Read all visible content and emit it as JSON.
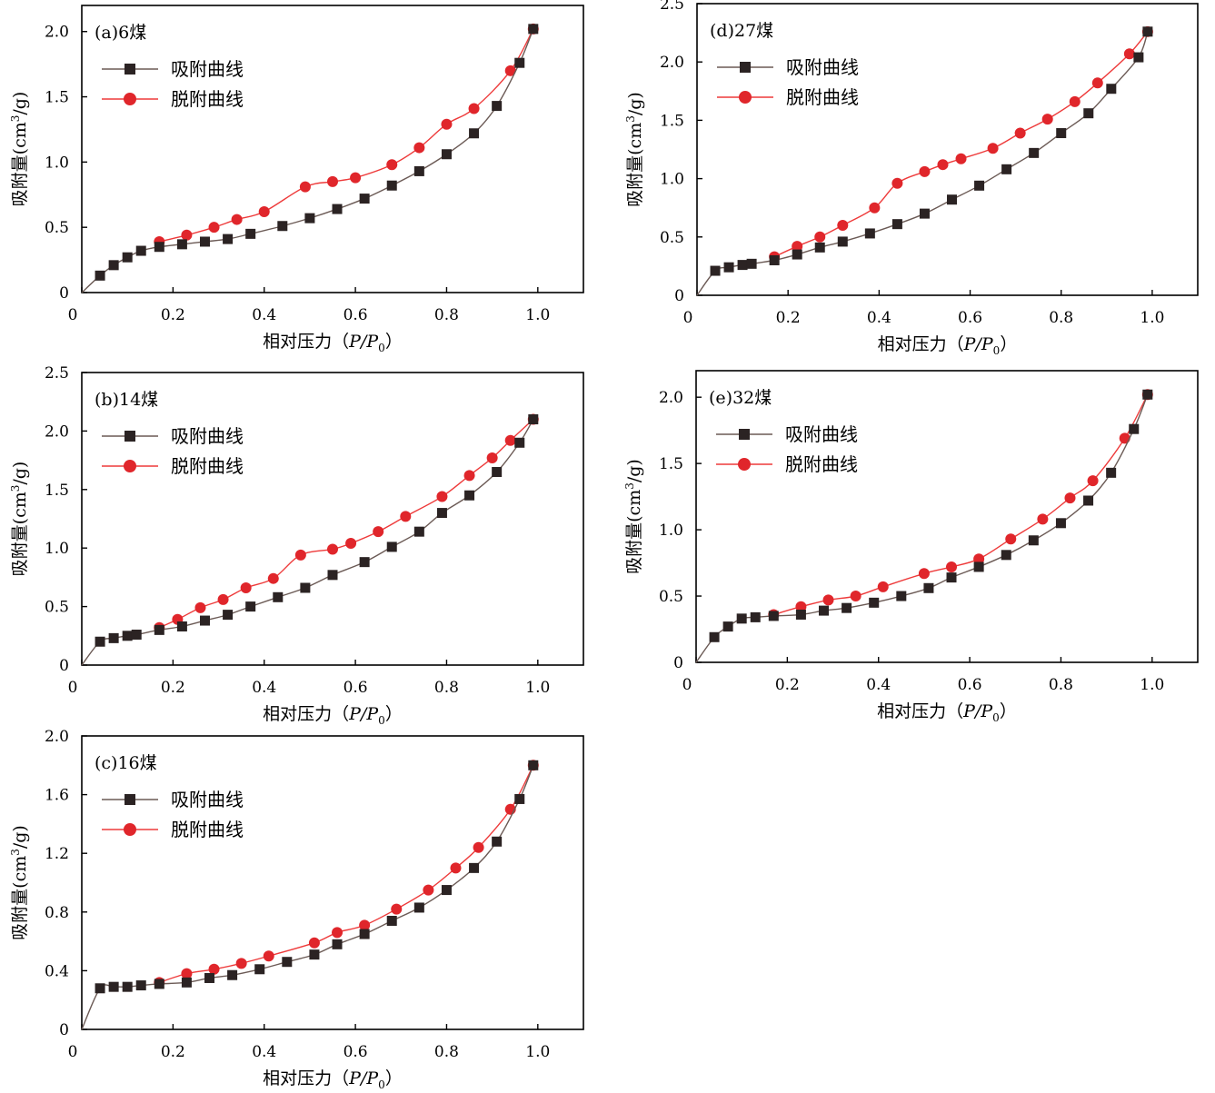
{
  "colors": {
    "adsorption": "#2b2323",
    "desorption": "#e0262b",
    "adsorption_line": "#6b5a55",
    "desorption_line": "#ee3a3a"
  },
  "chart_data": [
    {
      "id": "a",
      "type": "line",
      "panel_label": "(a)6煤",
      "xlabel_main": "相对压力（",
      "xlabel_p": "P",
      "xlabel_slash": "/",
      "xlabel_p0": "P",
      "xlabel_sub": "0",
      "xlabel_close": "）",
      "ylabel_main": "吸附量(cm",
      "ylabel_sup": "3",
      "ylabel_tail": "/g)",
      "xlim": [
        0,
        1.1
      ],
      "ylim": [
        0,
        2.2
      ],
      "xticks": [
        0,
        0.2,
        0.4,
        0.6,
        0.8,
        1.0
      ],
      "xtick_labels": [
        "0",
        "0.2",
        "0.4",
        "0.6",
        "0.8",
        "1.0"
      ],
      "yticks": [
        0,
        0.5,
        1.0,
        1.5,
        2.0
      ],
      "ytick_labels": [
        "0",
        "0.5",
        "1.0",
        "1.5",
        "2.0"
      ],
      "legend_position": "top-left",
      "series": [
        {
          "name": "吸附曲线",
          "marker": "square",
          "x": [
            0.0,
            0.04,
            0.07,
            0.1,
            0.13,
            0.17,
            0.22,
            0.27,
            0.32,
            0.37,
            0.44,
            0.5,
            0.56,
            0.62,
            0.68,
            0.74,
            0.8,
            0.86,
            0.91,
            0.96,
            0.99
          ],
          "y": [
            0.0,
            0.13,
            0.21,
            0.27,
            0.32,
            0.35,
            0.37,
            0.39,
            0.41,
            0.45,
            0.51,
            0.57,
            0.64,
            0.72,
            0.82,
            0.93,
            1.06,
            1.22,
            1.43,
            1.76,
            2.02
          ]
        },
        {
          "name": "脱附曲线",
          "marker": "circle",
          "x": [
            0.99,
            0.94,
            0.86,
            0.8,
            0.74,
            0.68,
            0.6,
            0.55,
            0.49,
            0.4,
            0.34,
            0.29,
            0.23,
            0.17
          ],
          "y": [
            2.02,
            1.7,
            1.41,
            1.29,
            1.11,
            0.98,
            0.88,
            0.85,
            0.81,
            0.62,
            0.56,
            0.5,
            0.44,
            0.39
          ]
        }
      ]
    },
    {
      "id": "b",
      "type": "line",
      "panel_label": "(b)14煤",
      "xlabel_main": "相对压力（",
      "xlabel_p": "P",
      "xlabel_slash": "/",
      "xlabel_p0": "P",
      "xlabel_sub": "0",
      "xlabel_close": "）",
      "ylabel_main": "吸附量(cm",
      "ylabel_sup": "3",
      "ylabel_tail": "/g)",
      "xlim": [
        0,
        1.1
      ],
      "ylim": [
        0,
        2.5
      ],
      "xticks": [
        0,
        0.2,
        0.4,
        0.6,
        0.8,
        1.0
      ],
      "xtick_labels": [
        "0",
        "0.2",
        "0.4",
        "0.6",
        "0.8",
        "1.0"
      ],
      "yticks": [
        0,
        0.5,
        1.0,
        1.5,
        2.0,
        2.5
      ],
      "ytick_labels": [
        "0",
        "0.5",
        "1.0",
        "1.5",
        "2.0",
        "2.5"
      ],
      "legend_position": "top-left",
      "series": [
        {
          "name": "吸附曲线",
          "marker": "square",
          "x": [
            0.0,
            0.04,
            0.07,
            0.1,
            0.12,
            0.17,
            0.22,
            0.27,
            0.32,
            0.37,
            0.43,
            0.49,
            0.55,
            0.62,
            0.68,
            0.74,
            0.79,
            0.85,
            0.91,
            0.96,
            0.99
          ],
          "y": [
            0.0,
            0.2,
            0.23,
            0.25,
            0.26,
            0.3,
            0.33,
            0.38,
            0.43,
            0.5,
            0.58,
            0.66,
            0.77,
            0.88,
            1.01,
            1.14,
            1.3,
            1.45,
            1.65,
            1.9,
            2.1
          ]
        },
        {
          "name": "脱附曲线",
          "marker": "circle",
          "x": [
            0.99,
            0.94,
            0.9,
            0.85,
            0.79,
            0.71,
            0.65,
            0.59,
            0.55,
            0.48,
            0.42,
            0.36,
            0.31,
            0.26,
            0.21,
            0.17
          ],
          "y": [
            2.1,
            1.92,
            1.77,
            1.62,
            1.44,
            1.27,
            1.14,
            1.04,
            0.99,
            0.94,
            0.74,
            0.66,
            0.56,
            0.49,
            0.39,
            0.32
          ]
        }
      ]
    },
    {
      "id": "c",
      "type": "line",
      "panel_label": "(c)16煤",
      "xlabel_main": "相对压力（",
      "xlabel_p": "P",
      "xlabel_slash": "/",
      "xlabel_p0": "P",
      "xlabel_sub": "0",
      "xlabel_close": "）",
      "ylabel_main": "吸附量(cm",
      "ylabel_sup": "3",
      "ylabel_tail": "/g)",
      "xlim": [
        0,
        1.1
      ],
      "ylim": [
        0,
        2.0
      ],
      "xticks": [
        0,
        0.2,
        0.4,
        0.6,
        0.8,
        1.0
      ],
      "xtick_labels": [
        "0",
        "0.2",
        "0.4",
        "0.6",
        "0.8",
        "1.0"
      ],
      "yticks": [
        0,
        0.4,
        0.8,
        1.2,
        1.6,
        2.0
      ],
      "ytick_labels": [
        "0",
        "0.4",
        "0.8",
        "1.2",
        "1.6",
        "2.0"
      ],
      "legend_position": "top-left",
      "series": [
        {
          "name": "吸附曲线",
          "marker": "square",
          "x": [
            0.0,
            0.04,
            0.07,
            0.1,
            0.13,
            0.17,
            0.23,
            0.28,
            0.33,
            0.39,
            0.45,
            0.51,
            0.56,
            0.62,
            0.68,
            0.74,
            0.8,
            0.86,
            0.91,
            0.96,
            0.99
          ],
          "y": [
            0.0,
            0.28,
            0.29,
            0.29,
            0.3,
            0.31,
            0.32,
            0.35,
            0.37,
            0.41,
            0.46,
            0.51,
            0.58,
            0.65,
            0.74,
            0.83,
            0.95,
            1.1,
            1.28,
            1.57,
            1.8
          ]
        },
        {
          "name": "脱附曲线",
          "marker": "circle",
          "x": [
            0.99,
            0.94,
            0.87,
            0.82,
            0.76,
            0.69,
            0.62,
            0.56,
            0.51,
            0.41,
            0.35,
            0.29,
            0.23,
            0.17
          ],
          "y": [
            1.8,
            1.5,
            1.24,
            1.1,
            0.95,
            0.82,
            0.71,
            0.66,
            0.59,
            0.5,
            0.45,
            0.41,
            0.38,
            0.32
          ]
        }
      ]
    },
    {
      "id": "d",
      "type": "line",
      "panel_label": "(d)27煤",
      "xlabel_main": "相对压力（",
      "xlabel_p": "P",
      "xlabel_slash": "/",
      "xlabel_p0": "P",
      "xlabel_sub": "0",
      "xlabel_close": "）",
      "ylabel_main": "吸附量(cm",
      "ylabel_sup": "3",
      "ylabel_tail": "/g)",
      "xlim": [
        0,
        1.1
      ],
      "ylim": [
        0,
        2.5
      ],
      "xticks": [
        0,
        0.2,
        0.4,
        0.6,
        0.8,
        1.0
      ],
      "xtick_labels": [
        "0",
        "0.2",
        "0.4",
        "0.6",
        "0.8",
        "1.0"
      ],
      "yticks": [
        0,
        0.5,
        1.0,
        1.5,
        2.0,
        2.5
      ],
      "ytick_labels": [
        "0",
        "0.5",
        "1.0",
        "1.5",
        "2.0",
        "2.5"
      ],
      "legend_position": "top-left",
      "series": [
        {
          "name": "吸附曲线",
          "marker": "square",
          "x": [
            0.0,
            0.04,
            0.07,
            0.1,
            0.12,
            0.17,
            0.22,
            0.27,
            0.32,
            0.38,
            0.44,
            0.5,
            0.56,
            0.62,
            0.68,
            0.74,
            0.8,
            0.86,
            0.91,
            0.97,
            0.99
          ],
          "y": [
            0.0,
            0.21,
            0.24,
            0.26,
            0.27,
            0.3,
            0.35,
            0.41,
            0.46,
            0.53,
            0.61,
            0.7,
            0.82,
            0.94,
            1.08,
            1.22,
            1.39,
            1.56,
            1.77,
            2.04,
            2.26
          ]
        },
        {
          "name": "脱附曲线",
          "marker": "circle",
          "x": [
            0.99,
            0.95,
            0.88,
            0.83,
            0.77,
            0.71,
            0.65,
            0.58,
            0.54,
            0.5,
            0.44,
            0.39,
            0.32,
            0.27,
            0.22,
            0.17
          ],
          "y": [
            2.26,
            2.07,
            1.82,
            1.66,
            1.51,
            1.39,
            1.26,
            1.17,
            1.12,
            1.06,
            0.96,
            0.75,
            0.6,
            0.5,
            0.42,
            0.33
          ]
        }
      ]
    },
    {
      "id": "e",
      "type": "line",
      "panel_label": "(e)32煤",
      "xlabel_main": "相对压力（",
      "xlabel_p": "P",
      "xlabel_slash": "/",
      "xlabel_p0": "P",
      "xlabel_sub": "0",
      "xlabel_close": "）",
      "ylabel_main": "吸附量(cm",
      "ylabel_sup": "3",
      "ylabel_tail": "/g)",
      "xlim": [
        0,
        1.1
      ],
      "ylim": [
        0,
        2.2
      ],
      "xticks": [
        0,
        0.2,
        0.4,
        0.6,
        0.8,
        1.0
      ],
      "xtick_labels": [
        "0",
        "0.2",
        "0.4",
        "0.6",
        "0.8",
        "1.0"
      ],
      "yticks": [
        0,
        0.5,
        1.0,
        1.5,
        2.0
      ],
      "ytick_labels": [
        "0",
        "0.5",
        "1.0",
        "1.5",
        "2.0"
      ],
      "legend_position": "top-left",
      "series": [
        {
          "name": "吸附曲线",
          "marker": "square",
          "x": [
            0.0,
            0.04,
            0.07,
            0.1,
            0.13,
            0.17,
            0.23,
            0.28,
            0.33,
            0.39,
            0.45,
            0.51,
            0.56,
            0.62,
            0.68,
            0.74,
            0.8,
            0.86,
            0.91,
            0.96,
            0.99
          ],
          "y": [
            0.0,
            0.19,
            0.27,
            0.33,
            0.34,
            0.35,
            0.36,
            0.39,
            0.41,
            0.45,
            0.5,
            0.56,
            0.64,
            0.72,
            0.81,
            0.92,
            1.05,
            1.22,
            1.43,
            1.76,
            2.02
          ]
        },
        {
          "name": "脱附曲线",
          "marker": "circle",
          "x": [
            0.99,
            0.94,
            0.87,
            0.82,
            0.76,
            0.69,
            0.62,
            0.56,
            0.5,
            0.41,
            0.35,
            0.29,
            0.23,
            0.17
          ],
          "y": [
            2.02,
            1.69,
            1.37,
            1.24,
            1.08,
            0.93,
            0.78,
            0.72,
            0.67,
            0.57,
            0.5,
            0.47,
            0.42,
            0.36
          ]
        }
      ]
    }
  ]
}
